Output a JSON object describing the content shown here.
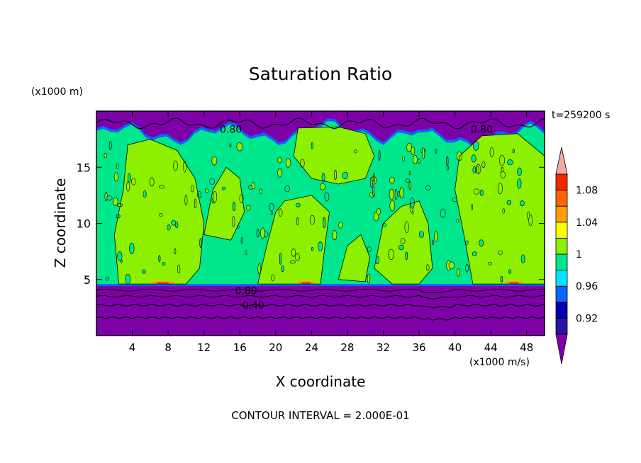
{
  "chart_data": {
    "type": "heatmap",
    "title": "Saturation Ratio",
    "xlabel": "X coordinate",
    "ylabel": "Z coordinate",
    "x_unit": "(x1000 m/s)",
    "y_unit": "(x1000 m)",
    "time_label": "t=259200 s",
    "footer": "CONTOUR INTERVAL = 2.000E-01",
    "xlim": [
      0,
      50
    ],
    "ylim": [
      0,
      20
    ],
    "x_ticks": [
      4,
      8,
      12,
      16,
      20,
      24,
      28,
      32,
      36,
      40,
      44,
      48
    ],
    "y_ticks": [
      5,
      10,
      15
    ],
    "colorbar": {
      "levels": [
        0.9,
        0.92,
        0.94,
        0.96,
        0.98,
        1,
        1.02,
        1.04,
        1.06,
        1.08,
        1.1
      ],
      "tick_labels": [
        "0.92",
        "0.96",
        "1",
        "1.04",
        "1.08"
      ],
      "colors": [
        "#2a14a6",
        "#0000b4",
        "#0a64ff",
        "#00e6ff",
        "#00e68c",
        "#8cf000",
        "#ffff00",
        "#ffa000",
        "#ff6400",
        "#f02800"
      ],
      "under_color": "#7d00a8",
      "over_color": "#f4a8a8"
    },
    "contour_labels": [
      {
        "text": "0.80",
        "x": 15,
        "z": 18.4
      },
      {
        "text": "0.80",
        "x": 43,
        "z": 18.4
      },
      {
        "text": "0.80",
        "x": 16.7,
        "z": 4.0
      },
      {
        "text": "0.40",
        "x": 17.5,
        "z": 2.7
      }
    ]
  }
}
